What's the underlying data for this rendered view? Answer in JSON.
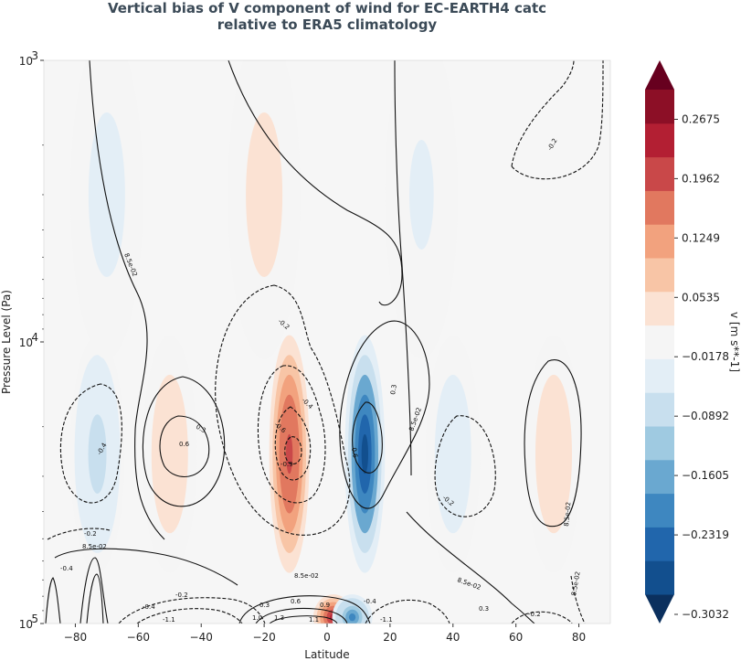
{
  "chart_data": {
    "type": "heatmap",
    "title_lines": [
      "Vertical bias of V component of wind for EC-EARTH4 catc",
      "relative to ERA5 climatology"
    ],
    "xlabel": "Latitude",
    "ylabel": "Pressure Level (Pa)",
    "xlim": [
      -90,
      90
    ],
    "ylim": [
      100000,
      1000
    ],
    "yscale": "log",
    "xticks": [
      -80,
      -60,
      -40,
      -20,
      0,
      20,
      40,
      60,
      80
    ],
    "yticks": [
      {
        "value": 1000,
        "base": "10",
        "exp": "3"
      },
      {
        "value": 10000,
        "base": "10",
        "exp": "4"
      },
      {
        "value": 100000,
        "base": "10",
        "exp": "5"
      }
    ],
    "colorbar": {
      "label": "v [m s**-1]",
      "min": -0.3032,
      "max": 0.3032,
      "colors": [
        "#0b305e",
        "#124f8e",
        "#2166ac",
        "#3e87c0",
        "#6aa8d0",
        "#9fcae1",
        "#c8dfee",
        "#e3eef6",
        "#f5f5f5",
        "#fbe2d3",
        "#f8c5a6",
        "#f2a27e",
        "#e1785f",
        "#c94849",
        "#b31f33",
        "#8c0f26",
        "#67001f"
      ],
      "tick_labels": [
        "0.2675",
        "0.1962",
        "0.1249",
        "0.0535",
        "-0.0178",
        "-0.0892",
        "-0.1605",
        "-0.2319",
        "-0.3032"
      ],
      "tick_values": [
        0.2675,
        0.1962,
        0.1249,
        0.0535,
        -0.0178,
        -0.0892,
        -0.1605,
        -0.2319,
        -0.3032
      ]
    },
    "bias_features": [
      {
        "lat": 12,
        "p": 25000,
        "value": -0.3
      },
      {
        "lat": -12,
        "p": 25000,
        "value": 0.22
      },
      {
        "lat": -73,
        "p": 25000,
        "value": -0.08
      },
      {
        "lat": -50,
        "p": 25000,
        "value": 0.05
      },
      {
        "lat": 40,
        "p": 25000,
        "value": -0.05
      },
      {
        "lat": 72,
        "p": 25000,
        "value": 0.06
      },
      {
        "lat": -20,
        "p": 3000,
        "value": 0.04
      },
      {
        "lat": -70,
        "p": 3000,
        "value": -0.04
      },
      {
        "lat": 30,
        "p": 3000,
        "value": -0.03
      },
      {
        "lat": 2,
        "p": 95000,
        "value": 0.25
      },
      {
        "lat": 8,
        "p": 95000,
        "value": -0.2
      }
    ],
    "contour_labels": [
      "-0.2",
      "-0.4",
      "-0.6",
      "-0.9",
      "0.3",
      "0.6",
      "0.9",
      "8.5e-02",
      "-1.1",
      "1.1",
      "1.3",
      "1.0"
    ]
  }
}
